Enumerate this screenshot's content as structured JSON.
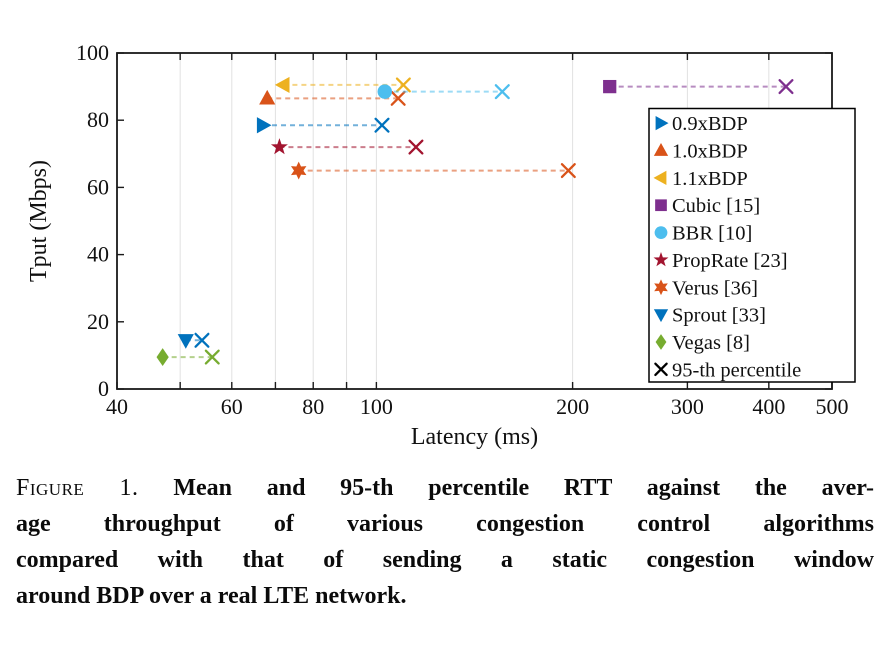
{
  "chart_data": {
    "type": "scatter",
    "title": "",
    "xlabel": "Latency (ms)",
    "ylabel": "Tput (Mbps)",
    "x_scale": "log",
    "xlim": [
      40,
      500
    ],
    "ylim": [
      0,
      100
    ],
    "x_tick_labels": [
      "40",
      "60",
      "80",
      "100",
      "200",
      "300",
      "400",
      "500"
    ],
    "x_tick_values": [
      40,
      60,
      80,
      100,
      200,
      300,
      400,
      500
    ],
    "x_minor_ticks": [
      40,
      50,
      60,
      70,
      80,
      90,
      100,
      200,
      300,
      400,
      500
    ],
    "x_gridlines": [
      50,
      60,
      70,
      80,
      90,
      100,
      200,
      300,
      400
    ],
    "y_ticks": [
      "0",
      "20",
      "40",
      "60",
      "80",
      "100"
    ],
    "y_tick_values": [
      0,
      20,
      40,
      60,
      80,
      100
    ],
    "grid": "vertical-only",
    "grid_color": "#e1e1e1",
    "axis_color": "#1a1a1a",
    "legend_position": "inside-right",
    "series": [
      {
        "name": "0.9xBDP",
        "marker": "triangle-right",
        "color": "#0072BD",
        "mean": {
          "x": 67,
          "y": 78.5
        },
        "p95": {
          "x": 102,
          "y": 78.5
        }
      },
      {
        "name": "1.0xBDP",
        "marker": "triangle-up",
        "color": "#D95319",
        "mean": {
          "x": 68,
          "y": 86.5
        },
        "p95": {
          "x": 108,
          "y": 86.5
        }
      },
      {
        "name": "1.1xBDP",
        "marker": "triangle-left",
        "color": "#EDB120",
        "mean": {
          "x": 72,
          "y": 90.5
        },
        "p95": {
          "x": 110,
          "y": 90.5
        }
      },
      {
        "name": "Cubic [15]",
        "marker": "square",
        "color": "#7E2F8E",
        "mean": {
          "x": 228,
          "y": 90
        },
        "p95": {
          "x": 425,
          "y": 90
        }
      },
      {
        "name": "BBR [10]",
        "marker": "circle",
        "color": "#4DBEEE",
        "mean": {
          "x": 103,
          "y": 88.5
        },
        "p95": {
          "x": 156,
          "y": 88.5
        }
      },
      {
        "name": "PropRate [23]",
        "marker": "star5",
        "color": "#A2142F",
        "mean": {
          "x": 71,
          "y": 72
        },
        "p95": {
          "x": 115,
          "y": 72
        }
      },
      {
        "name": "Verus [36]",
        "marker": "star6",
        "color": "#D95319",
        "mean": {
          "x": 76,
          "y": 65
        },
        "p95": {
          "x": 197,
          "y": 65
        }
      },
      {
        "name": "Sprout [33]",
        "marker": "triangle-down",
        "color": "#0072BD",
        "mean": {
          "x": 51,
          "y": 14.5
        },
        "p95": {
          "x": 54,
          "y": 14.5
        }
      },
      {
        "name": "Vegas [8]",
        "marker": "diamond",
        "color": "#77AC30",
        "mean": {
          "x": 47,
          "y": 9.5
        },
        "p95": {
          "x": 56,
          "y": 9.5
        }
      }
    ],
    "legend_extra_entry": {
      "label": "95-th percentile",
      "marker": "x",
      "color": "#000000"
    },
    "connector_style": "dashed"
  },
  "caption": {
    "label": "Figure 1.",
    "lines": [
      "Mean and 95-th percentile RTT against the aver-",
      "age throughput of various congestion control algorithms",
      "compared with that of sending a static congestion window",
      "around BDP over a real LTE network."
    ]
  }
}
